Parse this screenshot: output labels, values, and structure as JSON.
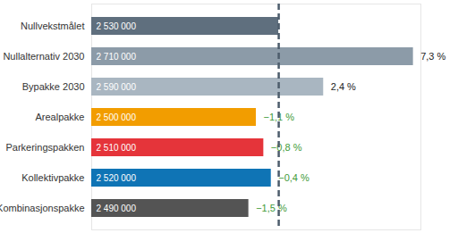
{
  "chart_data": {
    "type": "bar",
    "orientation": "horizontal",
    "categories": [
      "Nullvekstmålet",
      "Nullalternativ 2030",
      "Bypakke 2030",
      "Arealpakke",
      "Parkeringspakken",
      "Kollektivpakke",
      "Kombinasjonspakke"
    ],
    "values": [
      2530000,
      2710000,
      2590000,
      2500000,
      2510000,
      2520000,
      2490000
    ],
    "value_labels": [
      "2 530 000",
      "2 710 000",
      "2 590 000",
      "2 500 000",
      "2 510 000",
      "2 520 000",
      "2 490 000"
    ],
    "colors": [
      "#5f6f7e",
      "#8c9ba8",
      "#a9b6c1",
      "#f29d00",
      "#e5343a",
      "#0f74b5",
      "#545454"
    ],
    "changes": [
      null,
      7.3,
      2.4,
      -1.1,
      -0.8,
      -0.4,
      -1.5
    ],
    "change_labels": [
      null,
      "7,3 %",
      "2,4 %",
      "−1,1 %",
      "−0,8 %",
      "−0,4 %",
      "−1,5 %"
    ],
    "target": 2530000,
    "xlim": [
      2280000,
      2720000
    ],
    "xticks": [],
    "data_labels": true,
    "tick_labels": "y",
    "grid": false
  }
}
